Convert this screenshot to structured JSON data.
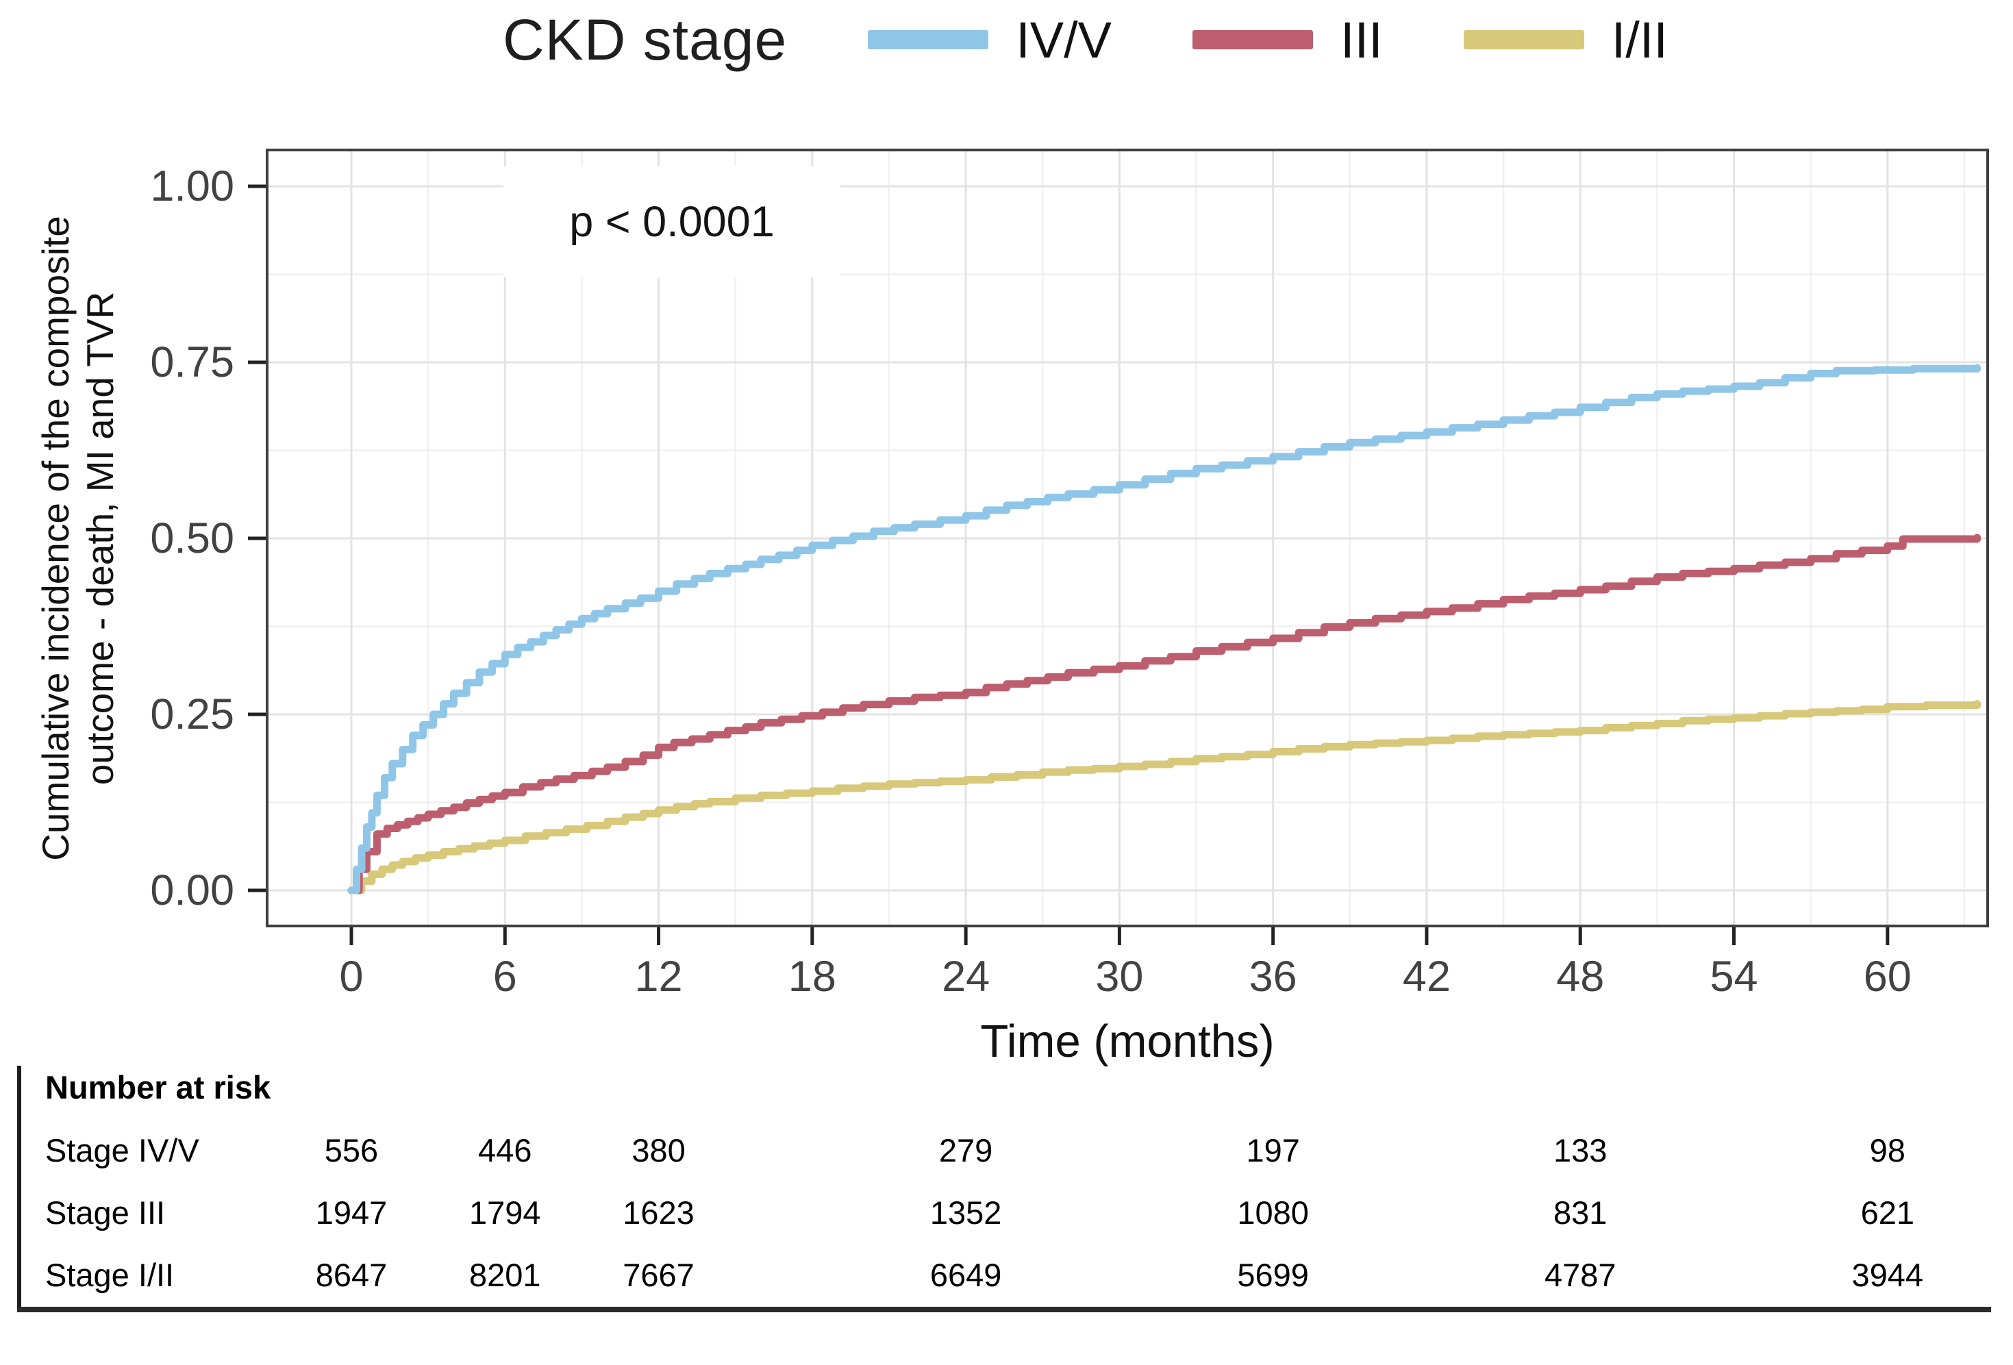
{
  "legend": {
    "title": "CKD stage",
    "items": [
      {
        "label": "IV/V",
        "color": "#8FC6E8"
      },
      {
        "label": "III",
        "color": "#BC5E6E"
      },
      {
        "label": "I/II",
        "color": "#D7C87A"
      }
    ]
  },
  "annotation": {
    "p_value": "p < 0.0001"
  },
  "axes": {
    "y_title_line1": "Cumulative incidence of the composite",
    "y_title_line2": "outcome - death, MI and TVR",
    "x_title": "Time (months)",
    "y_ticks": [
      {
        "label": "1.00",
        "value": 1.0
      },
      {
        "label": "0.75",
        "value": 0.75
      },
      {
        "label": "0.50",
        "value": 0.5
      },
      {
        "label": "0.25",
        "value": 0.25
      },
      {
        "label": "0.00",
        "value": 0.0
      }
    ],
    "x_ticks": [
      {
        "label": "0",
        "value": 0
      },
      {
        "label": "6",
        "value": 6
      },
      {
        "label": "12",
        "value": 12
      },
      {
        "label": "18",
        "value": 18
      },
      {
        "label": "24",
        "value": 24
      },
      {
        "label": "30",
        "value": 30
      },
      {
        "label": "36",
        "value": 36
      },
      {
        "label": "42",
        "value": 42
      },
      {
        "label": "48",
        "value": 48
      },
      {
        "label": "54",
        "value": 54
      },
      {
        "label": "60",
        "value": 60
      }
    ]
  },
  "risk_table": {
    "header": "Number at risk",
    "time_points": [
      0,
      6,
      12,
      24,
      36,
      48,
      60
    ],
    "rows": [
      {
        "label": "Stage IV/V",
        "values": [
          "556",
          "446",
          "380",
          "279",
          "197",
          "133",
          "98"
        ]
      },
      {
        "label": "Stage III",
        "values": [
          "1947",
          "1794",
          "1623",
          "1352",
          "1080",
          "831",
          "621"
        ]
      },
      {
        "label": "Stage I/II",
        "values": [
          "8647",
          "8201",
          "7667",
          "6649",
          "5699",
          "4787",
          "3944"
        ]
      }
    ]
  },
  "chart_data": {
    "type": "line",
    "subtype": "cumulative-incidence-step-curves",
    "title": "CKD stage",
    "xlabel": "Time (months)",
    "ylabel": "Cumulative incidence of the composite outcome - death, MI and TVR",
    "xlim": [
      0,
      63.5
    ],
    "ylim": [
      0,
      1
    ],
    "x_tick_values": [
      0,
      6,
      12,
      18,
      24,
      30,
      36,
      42,
      48,
      54,
      60
    ],
    "y_tick_values": [
      0,
      0.25,
      0.5,
      0.75,
      1.0
    ],
    "grid": true,
    "minor_grid": true,
    "legend_position": "top",
    "annotation": "p < 0.0001",
    "grid_major_color": "#e3e3e3",
    "grid_minor_color": "#f0f0f0",
    "panel_border_color": "#3f3f3f",
    "series": [
      {
        "name": "I/II",
        "color": "#D7C87A",
        "points": [
          [
            0,
            0
          ],
          [
            0.4,
            0.013
          ],
          [
            0.8,
            0.023
          ],
          [
            1.2,
            0.03
          ],
          [
            1.6,
            0.036
          ],
          [
            2,
            0.041
          ],
          [
            2.5,
            0.046
          ],
          [
            3,
            0.05
          ],
          [
            3.6,
            0.055
          ],
          [
            4.2,
            0.059
          ],
          [
            4.8,
            0.063
          ],
          [
            5.4,
            0.067
          ],
          [
            6,
            0.071
          ],
          [
            6.8,
            0.077
          ],
          [
            7.6,
            0.082
          ],
          [
            8.4,
            0.087
          ],
          [
            9.2,
            0.092
          ],
          [
            10,
            0.098
          ],
          [
            10.7,
            0.104
          ],
          [
            11.4,
            0.109
          ],
          [
            12,
            0.114
          ],
          [
            12.7,
            0.119
          ],
          [
            13.4,
            0.123
          ],
          [
            14,
            0.126
          ],
          [
            15,
            0.131
          ],
          [
            16,
            0.135
          ],
          [
            17,
            0.138
          ],
          [
            18,
            0.141
          ],
          [
            19,
            0.145
          ],
          [
            20,
            0.148
          ],
          [
            21,
            0.151
          ],
          [
            22,
            0.153
          ],
          [
            23,
            0.155
          ],
          [
            24,
            0.157
          ],
          [
            25,
            0.161
          ],
          [
            26,
            0.164
          ],
          [
            27,
            0.168
          ],
          [
            28,
            0.171
          ],
          [
            29,
            0.173
          ],
          [
            30,
            0.176
          ],
          [
            31,
            0.179
          ],
          [
            32,
            0.183
          ],
          [
            33,
            0.187
          ],
          [
            34,
            0.19
          ],
          [
            35,
            0.193
          ],
          [
            36,
            0.197
          ],
          [
            37,
            0.201
          ],
          [
            38,
            0.204
          ],
          [
            39,
            0.207
          ],
          [
            40,
            0.209
          ],
          [
            41,
            0.211
          ],
          [
            42,
            0.213
          ],
          [
            43,
            0.216
          ],
          [
            44,
            0.219
          ],
          [
            45,
            0.221
          ],
          [
            46,
            0.223
          ],
          [
            47,
            0.225
          ],
          [
            48,
            0.227
          ],
          [
            49,
            0.231
          ],
          [
            50,
            0.234
          ],
          [
            51,
            0.237
          ],
          [
            52,
            0.241
          ],
          [
            53,
            0.243
          ],
          [
            54,
            0.245
          ],
          [
            55,
            0.248
          ],
          [
            56,
            0.251
          ],
          [
            57,
            0.253
          ],
          [
            58,
            0.255
          ],
          [
            59,
            0.257
          ],
          [
            60,
            0.261
          ],
          [
            61.5,
            0.263
          ],
          [
            63.5,
            0.265
          ]
        ]
      },
      {
        "name": "III",
        "color": "#BC5E6E",
        "points": [
          [
            0,
            0
          ],
          [
            0.3,
            0.03
          ],
          [
            0.6,
            0.055
          ],
          [
            1,
            0.08
          ],
          [
            1.4,
            0.088
          ],
          [
            1.8,
            0.093
          ],
          [
            2.2,
            0.098
          ],
          [
            2.6,
            0.103
          ],
          [
            3,
            0.108
          ],
          [
            3.5,
            0.113
          ],
          [
            4,
            0.118
          ],
          [
            4.5,
            0.124
          ],
          [
            5,
            0.129
          ],
          [
            5.5,
            0.134
          ],
          [
            6,
            0.139
          ],
          [
            6.7,
            0.147
          ],
          [
            7.4,
            0.153
          ],
          [
            8,
            0.158
          ],
          [
            8.7,
            0.163
          ],
          [
            9.4,
            0.169
          ],
          [
            10,
            0.175
          ],
          [
            10.7,
            0.183
          ],
          [
            11.4,
            0.192
          ],
          [
            12,
            0.203
          ],
          [
            12.6,
            0.21
          ],
          [
            13.3,
            0.215
          ],
          [
            14,
            0.221
          ],
          [
            14.7,
            0.227
          ],
          [
            15.4,
            0.232
          ],
          [
            16,
            0.238
          ],
          [
            16.8,
            0.243
          ],
          [
            17.6,
            0.248
          ],
          [
            18.4,
            0.253
          ],
          [
            19.2,
            0.259
          ],
          [
            20,
            0.264
          ],
          [
            21,
            0.269
          ],
          [
            22,
            0.274
          ],
          [
            23,
            0.277
          ],
          [
            24,
            0.281
          ],
          [
            24.8,
            0.288
          ],
          [
            25.6,
            0.293
          ],
          [
            26.4,
            0.298
          ],
          [
            27.2,
            0.303
          ],
          [
            28,
            0.309
          ],
          [
            29,
            0.314
          ],
          [
            30,
            0.319
          ],
          [
            31,
            0.326
          ],
          [
            32,
            0.332
          ],
          [
            33,
            0.34
          ],
          [
            34,
            0.346
          ],
          [
            35,
            0.352
          ],
          [
            36,
            0.358
          ],
          [
            37,
            0.366
          ],
          [
            38,
            0.374
          ],
          [
            39,
            0.38
          ],
          [
            40,
            0.386
          ],
          [
            41,
            0.391
          ],
          [
            42,
            0.396
          ],
          [
            43,
            0.401
          ],
          [
            44,
            0.407
          ],
          [
            45,
            0.413
          ],
          [
            46,
            0.418
          ],
          [
            47,
            0.422
          ],
          [
            48,
            0.427
          ],
          [
            49,
            0.432
          ],
          [
            50,
            0.439
          ],
          [
            51,
            0.445
          ],
          [
            52,
            0.45
          ],
          [
            53,
            0.453
          ],
          [
            54,
            0.457
          ],
          [
            55,
            0.462
          ],
          [
            56,
            0.466
          ],
          [
            57,
            0.471
          ],
          [
            58,
            0.478
          ],
          [
            59,
            0.483
          ],
          [
            60,
            0.489
          ],
          [
            60.6,
            0.499
          ],
          [
            63.5,
            0.501
          ]
        ]
      },
      {
        "name": "IV/V",
        "color": "#8FC6E8",
        "points": [
          [
            0,
            0
          ],
          [
            0.2,
            0.03
          ],
          [
            0.4,
            0.06
          ],
          [
            0.6,
            0.09
          ],
          [
            0.8,
            0.11
          ],
          [
            1,
            0.135
          ],
          [
            1.3,
            0.16
          ],
          [
            1.6,
            0.18
          ],
          [
            2,
            0.2
          ],
          [
            2.4,
            0.22
          ],
          [
            2.8,
            0.235
          ],
          [
            3.2,
            0.25
          ],
          [
            3.6,
            0.265
          ],
          [
            4,
            0.28
          ],
          [
            4.5,
            0.295
          ],
          [
            5,
            0.31
          ],
          [
            5.5,
            0.322
          ],
          [
            6,
            0.335
          ],
          [
            6.5,
            0.345
          ],
          [
            7,
            0.353
          ],
          [
            7.5,
            0.362
          ],
          [
            8,
            0.37
          ],
          [
            8.5,
            0.378
          ],
          [
            9,
            0.386
          ],
          [
            9.5,
            0.393
          ],
          [
            10,
            0.4
          ],
          [
            10.7,
            0.408
          ],
          [
            11.3,
            0.415
          ],
          [
            12,
            0.425
          ],
          [
            12.7,
            0.435
          ],
          [
            13.4,
            0.443
          ],
          [
            14,
            0.45
          ],
          [
            14.7,
            0.457
          ],
          [
            15.4,
            0.463
          ],
          [
            16,
            0.47
          ],
          [
            16.7,
            0.476
          ],
          [
            17.4,
            0.483
          ],
          [
            18,
            0.49
          ],
          [
            18.8,
            0.497
          ],
          [
            19.6,
            0.503
          ],
          [
            20.4,
            0.51
          ],
          [
            21.2,
            0.515
          ],
          [
            22,
            0.52
          ],
          [
            23,
            0.526
          ],
          [
            24,
            0.532
          ],
          [
            24.8,
            0.54
          ],
          [
            25.6,
            0.547
          ],
          [
            26.4,
            0.552
          ],
          [
            27.2,
            0.558
          ],
          [
            28,
            0.563
          ],
          [
            29,
            0.569
          ],
          [
            30,
            0.576
          ],
          [
            31,
            0.584
          ],
          [
            32,
            0.592
          ],
          [
            33,
            0.599
          ],
          [
            34,
            0.604
          ],
          [
            35,
            0.61
          ],
          [
            36,
            0.616
          ],
          [
            37,
            0.623
          ],
          [
            38,
            0.63
          ],
          [
            39,
            0.636
          ],
          [
            40,
            0.641
          ],
          [
            41,
            0.646
          ],
          [
            42,
            0.651
          ],
          [
            43,
            0.657
          ],
          [
            44,
            0.662
          ],
          [
            45,
            0.668
          ],
          [
            46,
            0.674
          ],
          [
            47,
            0.679
          ],
          [
            48,
            0.686
          ],
          [
            49,
            0.693
          ],
          [
            50,
            0.7
          ],
          [
            51,
            0.705
          ],
          [
            52,
            0.709
          ],
          [
            53,
            0.712
          ],
          [
            54,
            0.716
          ],
          [
            55,
            0.721
          ],
          [
            56,
            0.728
          ],
          [
            57,
            0.734
          ],
          [
            58,
            0.738
          ],
          [
            59.5,
            0.739
          ],
          [
            61,
            0.741
          ],
          [
            63.5,
            0.742
          ]
        ]
      }
    ],
    "risk_table": {
      "header": "Number at risk",
      "time_points": [
        0,
        6,
        12,
        24,
        36,
        48,
        60
      ],
      "rows": [
        {
          "label": "Stage IV/V",
          "values": [
            556,
            446,
            380,
            279,
            197,
            133,
            98
          ]
        },
        {
          "label": "Stage III",
          "values": [
            1947,
            1794,
            1623,
            1352,
            1080,
            831,
            621
          ]
        },
        {
          "label": "Stage I/II",
          "values": [
            8647,
            8201,
            7667,
            6649,
            5699,
            4787,
            3944
          ]
        }
      ]
    }
  }
}
